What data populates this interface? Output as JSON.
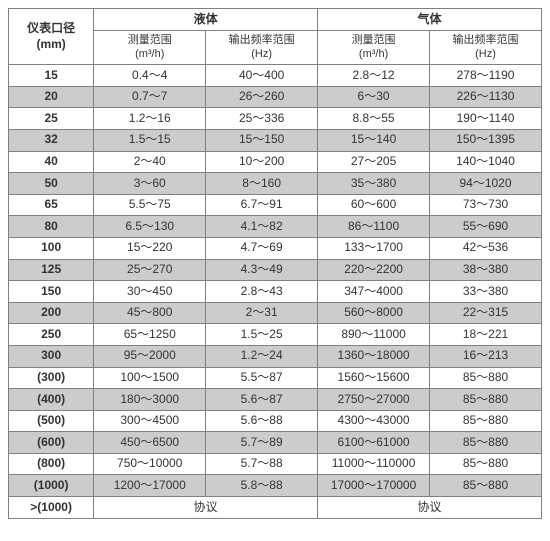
{
  "header": {
    "diameter_label": "仪表口径",
    "diameter_unit": "(mm)",
    "liquid": "液体",
    "gas": "气体",
    "measure_range": "测量范围",
    "measure_unit": "(m³/h)",
    "freq_range": "输出频率范围",
    "freq_unit": "(Hz)"
  },
  "style": {
    "border_color": "#808080",
    "shade_color": "#cccccc",
    "bg_color": "#ffffff",
    "text_color": "#333333",
    "font_size_main": 12,
    "font_size_sub": 11,
    "col_widths_pct": [
      16,
      21,
      21,
      21,
      21
    ]
  },
  "rows": [
    {
      "d": "15",
      "lm": "0.4～4",
      "lf": "40～400",
      "gm": "2.8～12",
      "gf": "278～1190",
      "shade": false
    },
    {
      "d": "20",
      "lm": "0.7～7",
      "lf": "26～260",
      "gm": "6～30",
      "gf": "226～1130",
      "shade": true
    },
    {
      "d": "25",
      "lm": "1.2～16",
      "lf": "25～336",
      "gm": "8.8～55",
      "gf": "190～1140",
      "shade": false
    },
    {
      "d": "32",
      "lm": "1.5～15",
      "lf": "15～150",
      "gm": "15～140",
      "gf": "150～1395",
      "shade": true
    },
    {
      "d": "40",
      "lm": "2～40",
      "lf": "10～200",
      "gm": "27～205",
      "gf": "140～1040",
      "shade": false
    },
    {
      "d": "50",
      "lm": "3～60",
      "lf": "8～160",
      "gm": "35～380",
      "gf": "94～1020",
      "shade": true
    },
    {
      "d": "65",
      "lm": "5.5～75",
      "lf": "6.7～91",
      "gm": "60～600",
      "gf": "73～730",
      "shade": false
    },
    {
      "d": "80",
      "lm": "6.5～130",
      "lf": "4.1～82",
      "gm": "86～1100",
      "gf": "55～690",
      "shade": true
    },
    {
      "d": "100",
      "lm": "15～220",
      "lf": "4.7～69",
      "gm": "133～1700",
      "gf": "42～536",
      "shade": false
    },
    {
      "d": "125",
      "lm": "25～270",
      "lf": "4.3～49",
      "gm": "220～2200",
      "gf": "38～380",
      "shade": true
    },
    {
      "d": "150",
      "lm": "30～450",
      "lf": "2.8～43",
      "gm": "347～4000",
      "gf": "33～380",
      "shade": false
    },
    {
      "d": "200",
      "lm": "45～800",
      "lf": "2～31",
      "gm": "560～8000",
      "gf": "22～315",
      "shade": true
    },
    {
      "d": "250",
      "lm": "65～1250",
      "lf": "1.5～25",
      "gm": "890～11000",
      "gf": "18～221",
      "shade": false
    },
    {
      "d": "300",
      "lm": "95～2000",
      "lf": "1.2～24",
      "gm": "1360～18000",
      "gf": "16～213",
      "shade": true
    },
    {
      "d": "(300)",
      "lm": "100～1500",
      "lf": "5.5～87",
      "gm": "1560～15600",
      "gf": "85～880",
      "shade": false
    },
    {
      "d": "(400)",
      "lm": "180～3000",
      "lf": "5.6～87",
      "gm": "2750～27000",
      "gf": "85～880",
      "shade": true
    },
    {
      "d": "(500)",
      "lm": "300～4500",
      "lf": "5.6～88",
      "gm": "4300～43000",
      "gf": "85～880",
      "shade": false
    },
    {
      "d": "(600)",
      "lm": "450～6500",
      "lf": "5.7～89",
      "gm": "6100～61000",
      "gf": "85～880",
      "shade": true
    },
    {
      "d": "(800)",
      "lm": "750～10000",
      "lf": "5.7～88",
      "gm": "11000～110000",
      "gf": "85～880",
      "shade": false
    },
    {
      "d": "(1000)",
      "lm": "1200～17000",
      "lf": "5.8～88",
      "gm": "17000～170000",
      "gf": "85～880",
      "shade": true
    }
  ],
  "footer": {
    "d": ">(1000)",
    "agreement": "协议"
  }
}
